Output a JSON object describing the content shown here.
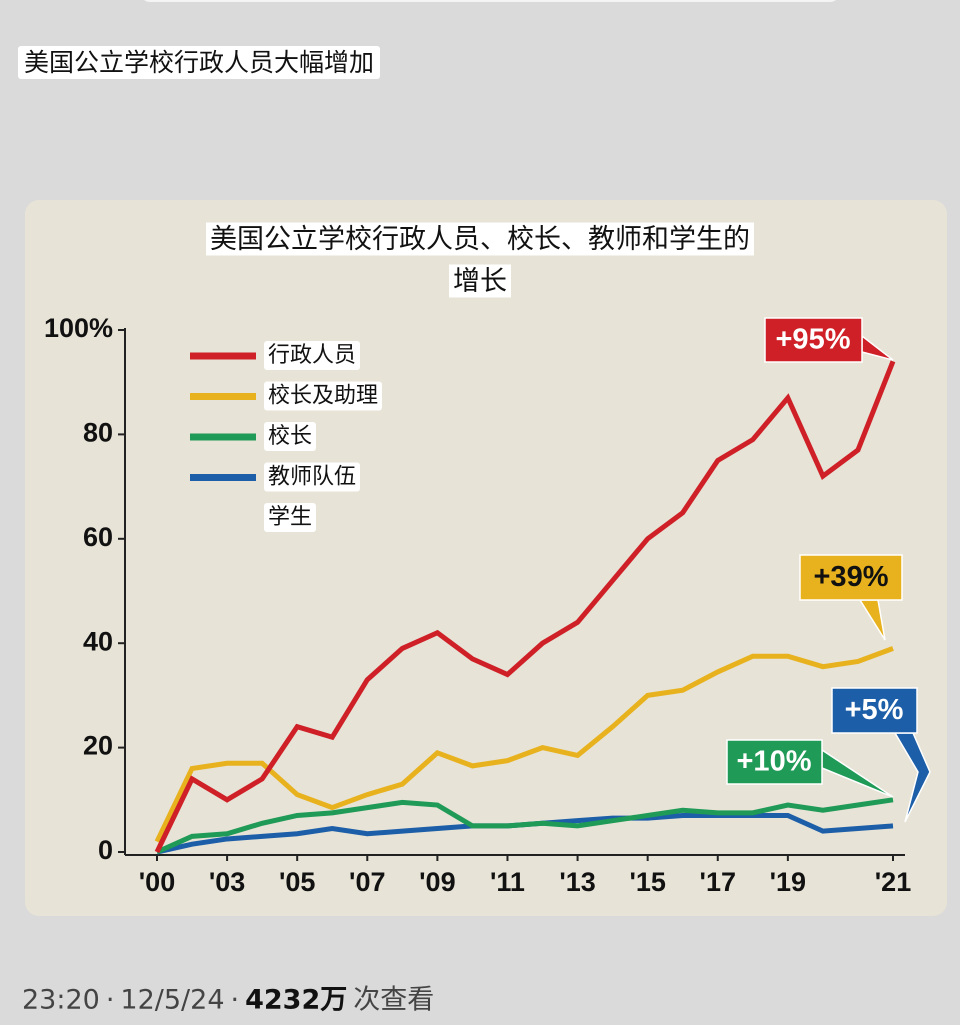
{
  "post_title": "美国公立学校行政人员大幅增加",
  "chart_data": {
    "type": "line",
    "title": "美国公立学校行政人员、校长、教师和学生的增长",
    "categories": [
      "'00",
      null,
      "'03",
      null,
      "'05",
      null,
      "'07",
      null,
      "'09",
      null,
      "'11",
      null,
      "'13",
      null,
      "'15",
      null,
      "'17",
      null,
      "'19",
      null,
      null,
      "'21"
    ],
    "series": [
      {
        "name": "行政人员",
        "color": "#cf2027",
        "values": [
          0,
          14,
          10,
          14,
          24,
          22,
          33,
          39,
          42,
          37,
          34,
          40,
          44,
          52,
          60,
          65,
          75,
          79,
          87,
          72,
          77,
          94
        ]
      },
      {
        "name": "校长及助理",
        "color": "#e8b21e",
        "values": [
          2,
          16,
          17,
          17,
          11,
          8.5,
          11,
          13,
          19,
          16.5,
          17.5,
          20,
          18.5,
          24,
          30,
          31,
          34.5,
          37.5,
          37.5,
          35.5,
          36.5,
          39
        ]
      },
      {
        "name": "校长",
        "color": "#1f9a57",
        "values": [
          0,
          3,
          3.5,
          5.5,
          7,
          7.5,
          8.5,
          9.5,
          9,
          5,
          5,
          5.5,
          5,
          6,
          7,
          8,
          7.5,
          7.5,
          9,
          8,
          9,
          10
        ]
      },
      {
        "name": "教师队伍",
        "color": "#1c5ea8",
        "values": [
          0,
          1.5,
          2.5,
          3,
          3.5,
          4.5,
          3.5,
          4,
          4.5,
          5,
          5,
          5.5,
          6,
          6.5,
          6.5,
          7,
          7,
          7,
          7,
          4,
          4.5,
          5
        ]
      },
      {
        "name": "学生",
        "values": [
          null,
          null,
          null,
          null,
          null,
          null,
          null,
          null,
          null,
          null,
          null,
          null,
          null,
          null,
          null,
          null,
          null,
          null,
          null,
          null,
          null,
          null
        ]
      }
    ],
    "ylim": [
      0,
      100
    ],
    "yticks": [
      0,
      20,
      40,
      60,
      80,
      {
        "value": 100,
        "label": "100%"
      }
    ],
    "annotations": [
      {
        "text": "+95%",
        "color": "#cf2027"
      },
      {
        "text": "+39%",
        "color": "#e8b21e"
      },
      {
        "text": "+10%",
        "color": "#1f9a57"
      },
      {
        "text": "+5%",
        "color": "#1c5ea8"
      }
    ]
  },
  "footer": {
    "time": "23:20",
    "separator": "·",
    "date": "12/5/24",
    "views": "4232万",
    "views_label": "次查看"
  }
}
